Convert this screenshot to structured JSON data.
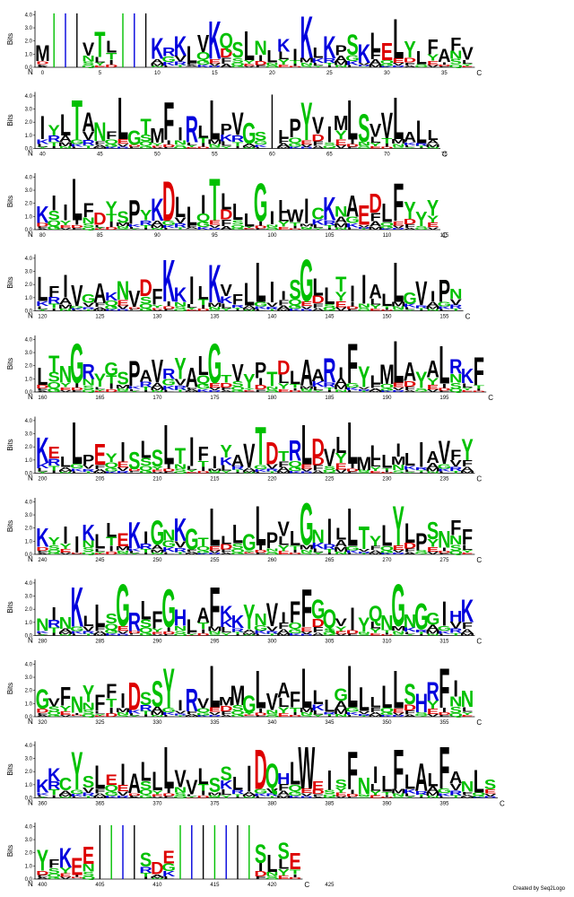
{
  "chart_data": {
    "type": "sequence-logo",
    "ylabel": "Bits",
    "ylim": [
      0,
      4.3
    ],
    "y_ticks": [
      "0.0",
      "1.0",
      "2.0",
      "3.0",
      "4.0"
    ],
    "n_label": "N",
    "c_label": "C",
    "credit": "Created by Seq2Logo",
    "colors": {
      "hydrophobic": "#000000",
      "polar": "#00c000",
      "basic": "#0000dd",
      "acidic": "#dd0000"
    },
    "rows": [
      {
        "start": 0,
        "sequence": "M...VTL...KRKLVKQSLNLKIKLKPSKLELYLFAFV",
        "x_ticks": [
          0,
          5,
          10,
          15,
          20,
          25,
          30,
          35
        ]
      },
      {
        "start": 40,
        "sequence": "IYLTANFLGTMFIRLLPVGS.LPYVIMLSVVLALL",
        "x_ticks": [
          40,
          45,
          50,
          55,
          60,
          65,
          70,
          75
        ]
      },
      {
        "start": 80,
        "sequence": "KIILFDYSPYKDLLITLLLGILWICKNAEDLFYYY",
        "x_ticks": [
          80,
          85,
          90,
          95,
          100,
          105,
          110,
          115
        ]
      },
      {
        "start": 120,
        "sequence": "LFIVGAKNVDFKKILKVFLLIISGLLTIIALLGVIPN",
        "x_ticks": [
          120,
          125,
          130,
          135,
          140,
          145,
          150,
          155
        ]
      },
      {
        "start": 160,
        "sequence": "LTNGRYGSPAVRYALGTVYPTDLAARIFYLMLAYALRKF",
        "x_ticks": [
          160,
          165,
          170,
          175,
          180,
          185,
          190,
          195
        ]
      },
      {
        "start": 200,
        "sequence": "KELLPEYISLSLTIFIYAVTDTRLDVLLMLLILIAVFY",
        "x_ticks": [
          200,
          205,
          210,
          215,
          220,
          225,
          230,
          235
        ]
      },
      {
        "start": 240,
        "sequence": "KYIIKLLEKIGNKGTLLLGLPVLGNILLTYLYLPSNFF",
        "x_ticks": [
          240,
          245,
          250,
          255,
          260,
          265,
          270,
          275
        ]
      },
      {
        "start": 280,
        "sequence": "NINKLLSGRLFGHLAFKKYNVIFFGQVIYQNGNGGIHK",
        "x_ticks": [
          280,
          285,
          290,
          295,
          300,
          305,
          310,
          315
        ]
      },
      {
        "start": 320,
        "sequence": "GVFNYFFIDSSYIRVLMMGLVAFLLLGLLLLLSHRFIN",
        "x_ticks": [
          320,
          325,
          330,
          335,
          340,
          345,
          350,
          355
        ]
      },
      {
        "start": 360,
        "sequence": "KKCYSLEIALLLVVLSSLIDQHLWEISFNILFLALFANLS",
        "x_ticks": [
          360,
          365,
          370,
          375,
          380,
          385,
          390,
          395
        ]
      },
      {
        "start": 400,
        "sequence": "YFKEE....SDE.......SLSE",
        "x_ticks": [
          400,
          405,
          410,
          415,
          420,
          425
        ]
      }
    ]
  }
}
